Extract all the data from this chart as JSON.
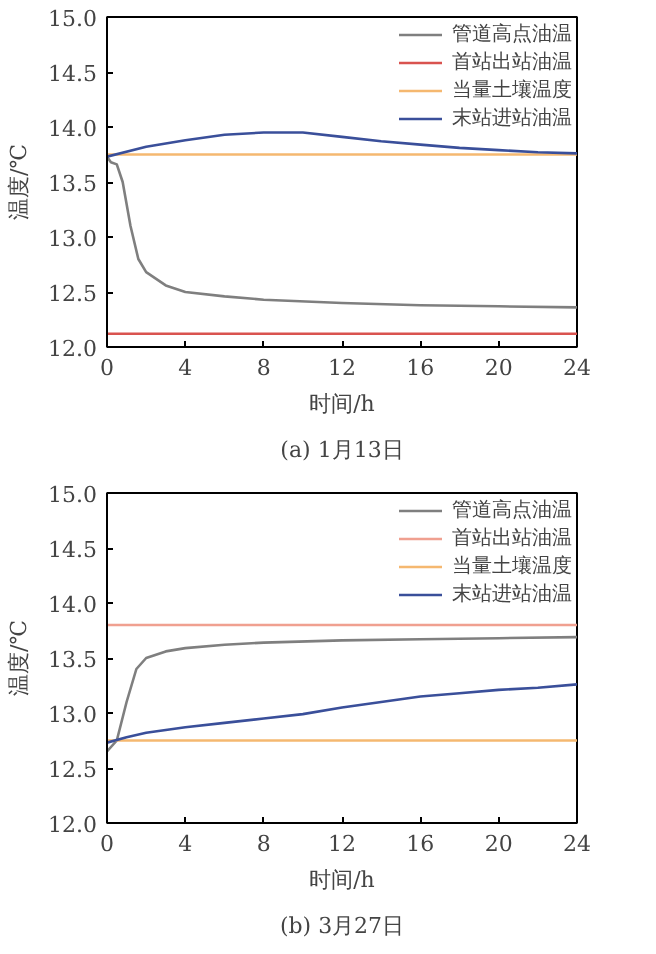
{
  "chart_data": [
    {
      "type": "line",
      "xlabel": "时间/h",
      "ylabel": "温度/℃",
      "annotations": [
        "(a) 1月13日"
      ],
      "xlim": [
        0,
        24
      ],
      "ylim": [
        12.0,
        15.0
      ],
      "xticks": [
        0,
        4,
        8,
        12,
        16,
        20,
        24
      ],
      "yticks": [
        {
          "value": 12.0,
          "label": "12.0"
        },
        12.5,
        {
          "value": 13.0,
          "label": "13.0"
        },
        13.5,
        {
          "value": 14.0,
          "label": "14.0"
        },
        14.5,
        {
          "value": 15.0,
          "label": "15.0"
        }
      ],
      "grid": false,
      "legend": "top right",
      "series": [
        {
          "name": "管道高点油温",
          "color": "#7f7f7f",
          "x": [
            0,
            0.2,
            0.5,
            0.8,
            1.2,
            1.6,
            2,
            3,
            4,
            6,
            8,
            12,
            16,
            20,
            24
          ],
          "values": [
            13.73,
            13.68,
            13.66,
            13.5,
            13.1,
            12.8,
            12.68,
            12.56,
            12.5,
            12.46,
            12.43,
            12.4,
            12.38,
            12.37,
            12.36
          ]
        },
        {
          "name": "首站出站油温",
          "color": "#d9534f",
          "x": [
            0,
            24
          ],
          "values": [
            12.12,
            12.12
          ]
        },
        {
          "name": "当量土壤温度",
          "color": "#f5b870",
          "x": [
            0,
            24
          ],
          "values": [
            13.75,
            13.75
          ]
        },
        {
          "name": "末站进站油温",
          "color": "#3a4f9a",
          "x": [
            0,
            2,
            4,
            6,
            8,
            10,
            12,
            14,
            16,
            18,
            20,
            22,
            24
          ],
          "values": [
            13.73,
            13.82,
            13.88,
            13.93,
            13.95,
            13.95,
            13.91,
            13.87,
            13.84,
            13.81,
            13.79,
            13.77,
            13.76
          ]
        }
      ]
    },
    {
      "type": "line",
      "xlabel": "时间/h",
      "ylabel": "温度/℃",
      "annotations": [
        "(b) 3月27日"
      ],
      "xlim": [
        0,
        24
      ],
      "ylim": [
        12.0,
        15.0
      ],
      "xticks": [
        0,
        4,
        8,
        12,
        16,
        20,
        24
      ],
      "yticks": [
        {
          "value": 12.0,
          "label": "12.0"
        },
        12.5,
        {
          "value": 13.0,
          "label": "13.0"
        },
        13.5,
        {
          "value": 14.0,
          "label": "14.0"
        },
        14.5,
        {
          "value": 15.0,
          "label": "15.0"
        }
      ],
      "grid": false,
      "legend": "top right",
      "series": [
        {
          "name": "管道高点油温",
          "color": "#7f7f7f",
          "x": [
            0,
            0.5,
            1,
            1.5,
            2,
            3,
            4,
            6,
            8,
            12,
            16,
            20,
            24
          ],
          "values": [
            12.65,
            12.75,
            13.1,
            13.4,
            13.5,
            13.56,
            13.59,
            13.62,
            13.64,
            13.66,
            13.67,
            13.68,
            13.69
          ]
        },
        {
          "name": "首站出站油温",
          "color": "#f0a090",
          "x": [
            0,
            24
          ],
          "values": [
            13.8,
            13.8
          ]
        },
        {
          "name": "当量土壤温度",
          "color": "#f5b870",
          "x": [
            0,
            24
          ],
          "values": [
            12.75,
            12.75
          ]
        },
        {
          "name": "末站进站油温",
          "color": "#3a4f9a",
          "x": [
            0,
            1,
            2,
            4,
            6,
            8,
            10,
            12,
            14,
            16,
            18,
            20,
            22,
            24
          ],
          "values": [
            12.73,
            12.78,
            12.82,
            12.87,
            12.91,
            12.95,
            12.99,
            13.05,
            13.1,
            13.15,
            13.18,
            13.21,
            13.23,
            13.26
          ]
        }
      ]
    }
  ]
}
